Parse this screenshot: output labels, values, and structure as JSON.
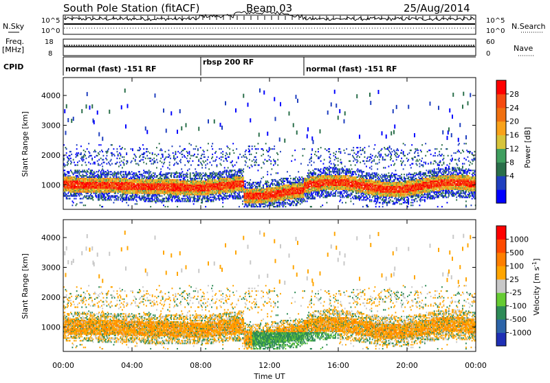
{
  "header": {
    "station": "South Pole Station (fitACF)",
    "beam": "Beam 03",
    "date": "25/Aug/2014"
  },
  "side_labels": {
    "nsky": "N.Sky",
    "freq_line1": "Freq.",
    "freq_line2": "[MHz]",
    "cpid": "CPID",
    "nsearch": "N.Search",
    "nave": "Nave"
  },
  "colors": {
    "power_scale": [
      "#0000ff",
      "#1f3fbf",
      "#2a6f4a",
      "#3f9f5f",
      "#d7c43a",
      "#f9a21a",
      "#f07010",
      "#f54a10",
      "#ff0000"
    ],
    "velocity_scale": [
      "#1e2fb5",
      "#2c64a8",
      "#2e8b57",
      "#66cc33",
      "#c8c8c8",
      "#ffa500",
      "#ff7f00",
      "#ff4a00",
      "#ff0000"
    ]
  },
  "chart_data": [
    {
      "type": "line",
      "name": "noise",
      "left_ticks": [
        "10^5",
        "10^0"
      ],
      "right_ticks": [
        "10^5",
        "10^0"
      ]
    },
    {
      "type": "line",
      "name": "frequency",
      "left_ticks": [
        "18",
        "8"
      ],
      "right_ticks": [
        "60",
        "0"
      ]
    },
    {
      "type": "table",
      "name": "cpid",
      "segments": [
        {
          "start": 0,
          "end": 8,
          "label": "normal (fast) -151 RF"
        },
        {
          "start": 8,
          "end": 14,
          "label": "rbsp 200 RF"
        },
        {
          "start": 14,
          "end": 24,
          "label": "normal (fast) -151 RF"
        }
      ]
    },
    {
      "type": "heatmap",
      "name": "power",
      "ylabel": "Slant Range [km]",
      "y_ticks": [
        1000,
        2000,
        3000,
        4000
      ],
      "ylim": [
        180,
        4600
      ],
      "xlim": [
        0,
        24
      ],
      "colorbar_label": "Power [dB]",
      "colorbar_ticks": [
        "28",
        "24",
        "20",
        "16",
        "12",
        "8",
        "4"
      ],
      "data_description": "Dense backscatter band 700-1500 km, strongest ~ 20-30 dB"
    },
    {
      "type": "heatmap",
      "name": "velocity",
      "ylabel": "Slant Range [km]",
      "y_ticks": [
        1000,
        2000,
        3000,
        4000
      ],
      "ylim": [
        180,
        4600
      ],
      "xlim": [
        0,
        24
      ],
      "colorbar_label": "Velocity [m s",
      "colorbar_label_sup": "-1",
      "colorbar_label_end": "]",
      "colorbar_ticks": [
        "1000",
        "500",
        "100",
        "25",
        "-25",
        "-100",
        "-500",
        "-1000"
      ]
    }
  ],
  "x_axis": {
    "ticks": [
      "00:00",
      "04:00",
      "08:00",
      "12:00",
      "16:00",
      "20:00",
      "00:00"
    ],
    "label": "Time UT"
  }
}
